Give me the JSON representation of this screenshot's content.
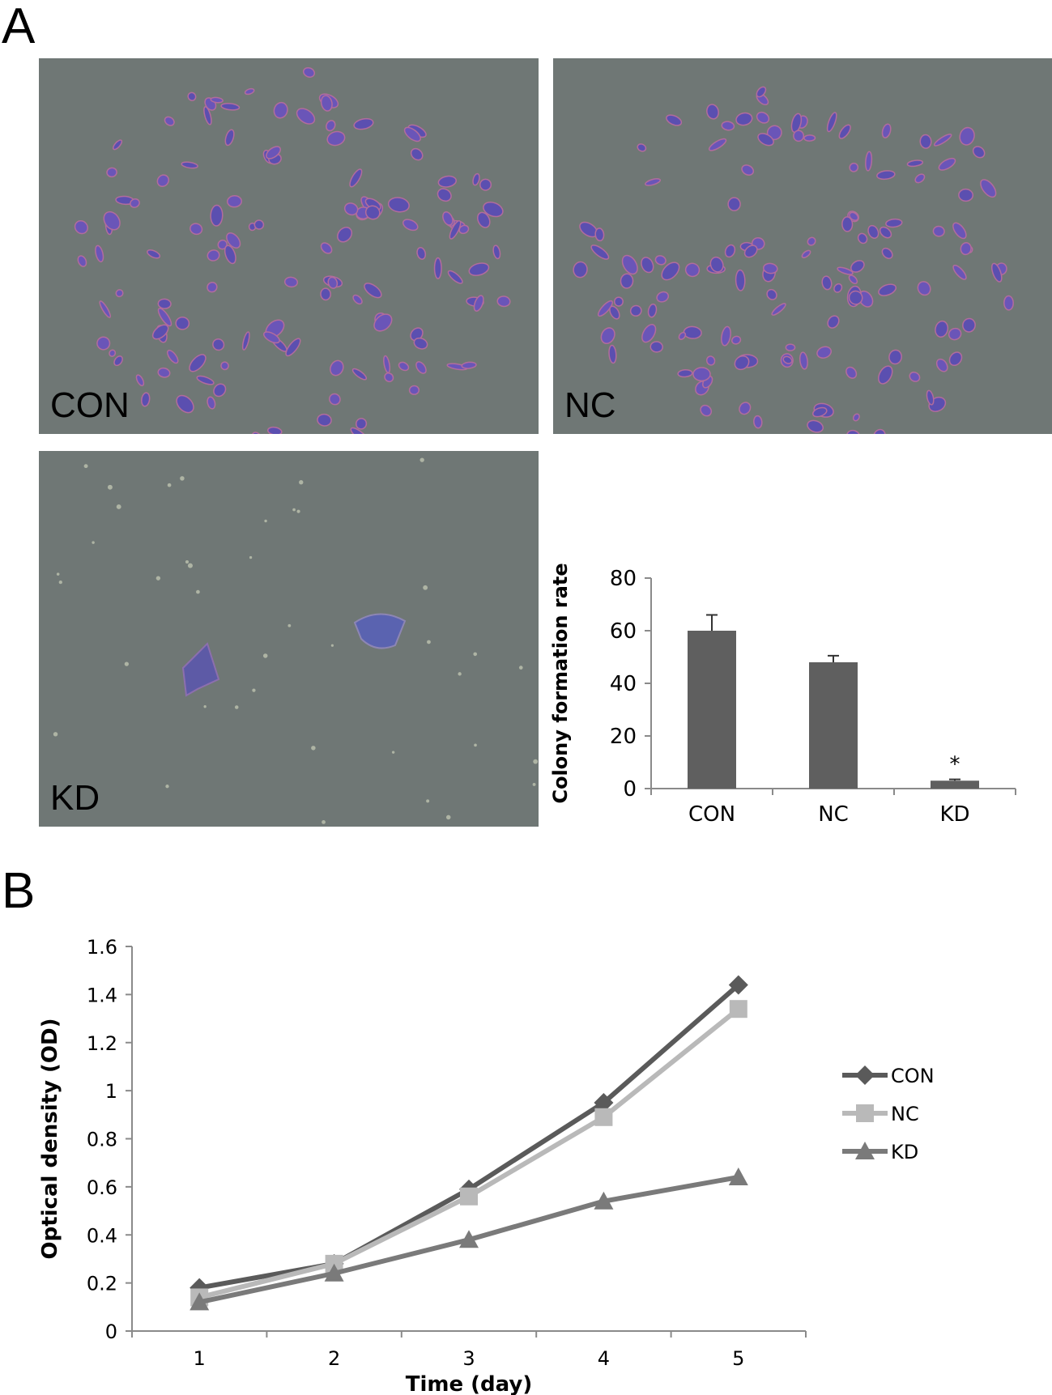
{
  "panels": {
    "a": "A",
    "b": "B"
  },
  "micrographs": [
    {
      "label": "CON",
      "density": "high"
    },
    {
      "label": "NC",
      "density": "high"
    },
    {
      "label": "KD",
      "density": "low"
    }
  ],
  "chart_data": [
    {
      "type": "bar",
      "categories": [
        "CON",
        "NC",
        "KD"
      ],
      "values": [
        60,
        48,
        3
      ],
      "errors": [
        6,
        2.5,
        0.5
      ],
      "annotations": [
        "",
        "",
        "*"
      ],
      "title": "",
      "xlabel": "",
      "ylabel": "Colony formation rate",
      "ylim": [
        0,
        80
      ],
      "yticks": [
        0,
        20,
        40,
        60,
        80
      ],
      "color": "#5f5f5f",
      "grid": false
    },
    {
      "type": "line",
      "x": [
        1,
        2,
        3,
        4,
        5
      ],
      "series": [
        {
          "name": "CON",
          "values": [
            0.18,
            0.28,
            0.59,
            0.95,
            1.44
          ],
          "color": "#5a5a5a",
          "marker": "diamond"
        },
        {
          "name": "NC",
          "values": [
            0.14,
            0.28,
            0.56,
            0.89,
            1.34
          ],
          "color": "#b9b9b9",
          "marker": "square"
        },
        {
          "name": "KD",
          "values": [
            0.12,
            0.24,
            0.38,
            0.54,
            0.64
          ],
          "color": "#7a7a7a",
          "marker": "triangle"
        }
      ],
      "title": "",
      "xlabel": "Time (day)",
      "ylabel": "Optical density (OD)",
      "ylim": [
        0,
        1.6
      ],
      "yticks": [
        "0",
        "0.2",
        "0.4",
        "0.6",
        "0.8",
        "1",
        "1.2",
        "1.4",
        "1.6"
      ],
      "xticks": [
        "1",
        "2",
        "3",
        "4",
        "5"
      ],
      "legend": "right",
      "grid": false
    }
  ]
}
